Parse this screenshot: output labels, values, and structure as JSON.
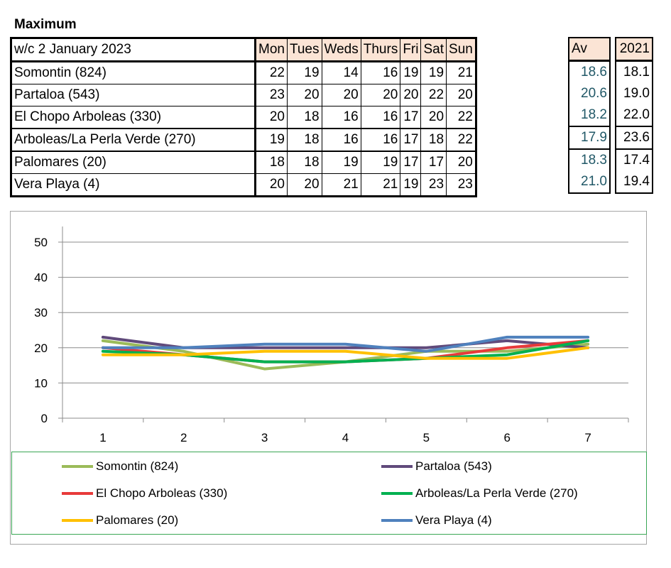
{
  "title": "Maximum",
  "table": {
    "week_label": "w/c  2 January 2023",
    "days": [
      "Mon",
      "Tues",
      "Weds",
      "Thurs",
      "Fri",
      "Sat",
      "Sun"
    ],
    "avg_header": "Av",
    "year_header": "2021",
    "rows": [
      {
        "name": "Somontin (824)",
        "values": [
          "22",
          "19",
          "14",
          "16",
          "19",
          "19",
          "21"
        ],
        "avg": "18.6",
        "year": "18.1"
      },
      {
        "name": "Partaloa (543)",
        "values": [
          "23",
          "20",
          "20",
          "20",
          "20",
          "22",
          "20"
        ],
        "avg": "20.6",
        "year": "19.0"
      },
      {
        "name": "El Chopo  Arboleas (330)",
        "values": [
          "20",
          "18",
          "16",
          "16",
          "17",
          "20",
          "22"
        ],
        "avg": "18.2",
        "year": "22.0"
      },
      {
        "name": "Arboleas/La Perla Verde (270)",
        "values": [
          "19",
          "18",
          "16",
          "16",
          "17",
          "18",
          "22"
        ],
        "avg": "17.9",
        "year": "23.6"
      },
      {
        "name": "Palomares (20)",
        "values": [
          "18",
          "18",
          "19",
          "19",
          "17",
          "17",
          "20"
        ],
        "avg": "18.3",
        "year": "17.4"
      },
      {
        "name": "Vera Playa (4)",
        "values": [
          "20",
          "20",
          "21",
          "21",
          "19",
          "23",
          "23"
        ],
        "avg": "21.0",
        "year": "19.4"
      }
    ]
  },
  "chart_data": {
    "type": "line",
    "x": [
      1,
      2,
      3,
      4,
      5,
      6,
      7
    ],
    "ylim": [
      0,
      50
    ],
    "yticks": [
      0,
      10,
      20,
      30,
      40,
      50
    ],
    "grid": true,
    "legend_position": "bottom",
    "series": [
      {
        "name": "Somontin (824)",
        "color": "#9bbb59",
        "values": [
          22,
          19,
          14,
          16,
          19,
          19,
          21
        ]
      },
      {
        "name": "Partaloa (543)",
        "color": "#604a7b",
        "values": [
          23,
          20,
          20,
          20,
          20,
          22,
          20
        ]
      },
      {
        "name": "El Chopo  Arboleas (330)",
        "color": "#e83a3a",
        "values": [
          20,
          18,
          16,
          16,
          17,
          20,
          22
        ]
      },
      {
        "name": "Arboleas/La Perla Verde (270)",
        "color": "#00b050",
        "values": [
          19,
          18,
          16,
          16,
          17,
          18,
          22
        ]
      },
      {
        "name": "Palomares (20)",
        "color": "#ffc000",
        "values": [
          18,
          18,
          19,
          19,
          17,
          17,
          20
        ]
      },
      {
        "name": "Vera Playa (4)",
        "color": "#4f81bd",
        "values": [
          20,
          20,
          21,
          21,
          19,
          23,
          23
        ]
      }
    ]
  }
}
